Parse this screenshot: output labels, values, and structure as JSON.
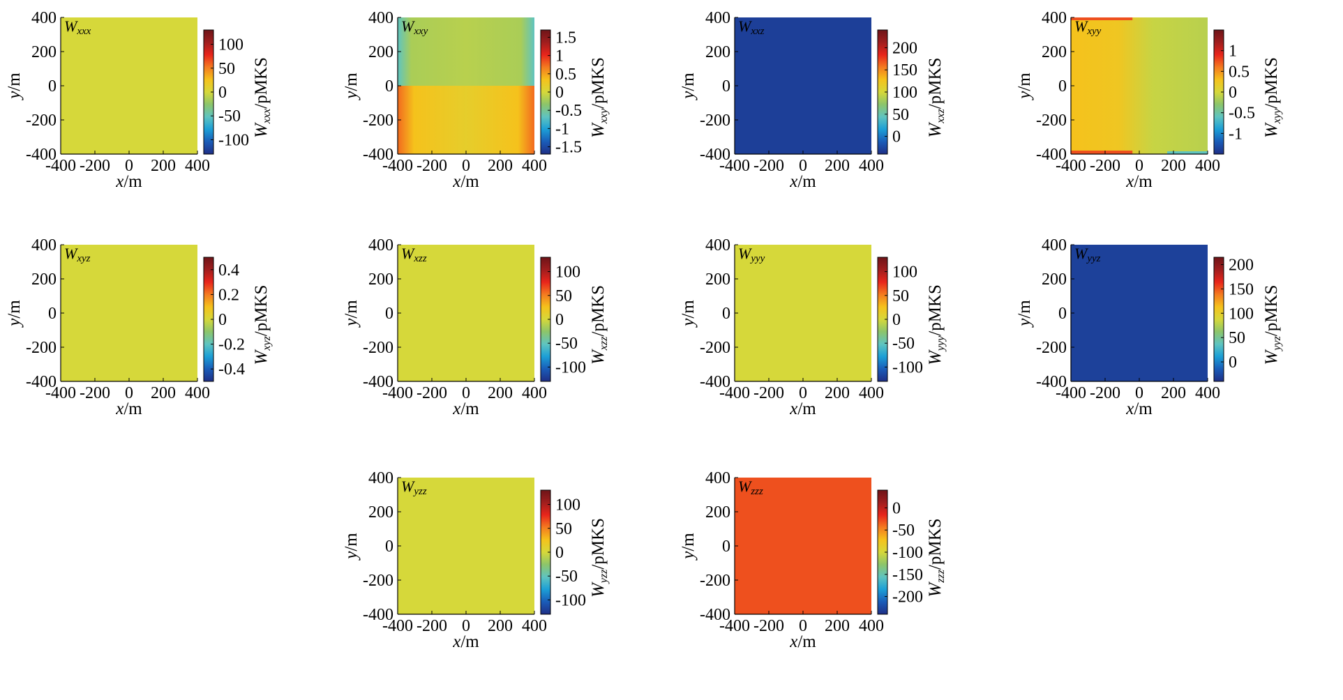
{
  "axes": {
    "x_label": {
      "var": "x",
      "unit": "/m"
    },
    "y_label": {
      "var": "y",
      "unit": "/m"
    },
    "ticks": [
      "-400",
      "-200",
      "0",
      "200",
      "400"
    ]
  },
  "colormap": [
    "#1f2f86",
    "#1a5cb8",
    "#1c9fd6",
    "#5fc4c0",
    "#8cc56b",
    "#d6d83a",
    "#f5c21c",
    "#f47b20",
    "#e8251b",
    "#a01e1e",
    "#6e1418"
  ],
  "chart_data": [
    {
      "type": "heatmap",
      "component": "xxx",
      "sub": "xxx",
      "unit": "/pMKS",
      "x_range": [
        -400,
        400
      ],
      "y_range": [
        -400,
        400
      ],
      "colorbar_range": [
        -130,
        130
      ],
      "colorbar_ticks": [
        "100",
        "50",
        "0",
        "-50",
        "-100"
      ],
      "field": "uniform",
      "field_value": 0
    },
    {
      "type": "heatmap",
      "component": "xxy",
      "sub": "xxy",
      "unit": "/pMKS",
      "x_range": [
        -400,
        400
      ],
      "y_range": [
        -400,
        400
      ],
      "colorbar_range": [
        -1.7,
        1.7
      ],
      "colorbar_ticks": [
        "1.5",
        "1",
        "0.5",
        "0",
        "-0.5",
        "-1",
        "-1.5"
      ],
      "field": "edge_lr",
      "field_value": 0
    },
    {
      "type": "heatmap",
      "component": "xxz",
      "sub": "xxz",
      "unit": "/pMKS",
      "x_range": [
        -400,
        400
      ],
      "y_range": [
        -400,
        400
      ],
      "colorbar_range": [
        -40,
        240
      ],
      "colorbar_ticks": [
        "200",
        "150",
        "100",
        "50",
        "0"
      ],
      "field": "uniform",
      "field_value": -30
    },
    {
      "type": "heatmap",
      "component": "xyy",
      "sub": "xyy",
      "unit": "/pMKS",
      "x_range": [
        -400,
        400
      ],
      "y_range": [
        -400,
        400
      ],
      "colorbar_range": [
        -1.5,
        1.5
      ],
      "colorbar_ticks": [
        "1",
        "0.5",
        "0",
        "-0.5",
        "-1"
      ],
      "field": "edge_tb",
      "field_value": 0
    },
    {
      "type": "heatmap",
      "component": "xyz",
      "sub": "xyz",
      "unit": "/pMKS",
      "x_range": [
        -400,
        400
      ],
      "y_range": [
        -400,
        400
      ],
      "colorbar_range": [
        -0.5,
        0.5
      ],
      "colorbar_ticks": [
        "0.4",
        "0.2",
        "0",
        "-0.2",
        "-0.4"
      ],
      "field": "uniform",
      "field_value": 0
    },
    {
      "type": "heatmap",
      "component": "xzz",
      "sub": "xzz",
      "unit": "/pMKS",
      "x_range": [
        -400,
        400
      ],
      "y_range": [
        -400,
        400
      ],
      "colorbar_range": [
        -130,
        130
      ],
      "colorbar_ticks": [
        "100",
        "50",
        "0",
        "-50",
        "-100"
      ],
      "field": "uniform",
      "field_value": 0
    },
    {
      "type": "heatmap",
      "component": "yyy",
      "sub": "yyy",
      "unit": "/pMKS",
      "x_range": [
        -400,
        400
      ],
      "y_range": [
        -400,
        400
      ],
      "colorbar_range": [
        -130,
        130
      ],
      "colorbar_ticks": [
        "100",
        "50",
        "0",
        "-50",
        "-100"
      ],
      "field": "uniform",
      "field_value": 0
    },
    {
      "type": "heatmap",
      "component": "yyz",
      "sub": "yyz",
      "unit": "/pMKS",
      "x_range": [
        -400,
        400
      ],
      "y_range": [
        -400,
        400
      ],
      "colorbar_range": [
        -40,
        215
      ],
      "colorbar_ticks": [
        "200",
        "150",
        "100",
        "50",
        "0"
      ],
      "field": "uniform",
      "field_value": -30
    },
    {
      "type": "heatmap",
      "component": "yzz",
      "sub": "yzz",
      "unit": "/pMKS",
      "x_range": [
        -400,
        400
      ],
      "y_range": [
        -400,
        400
      ],
      "colorbar_range": [
        -130,
        130
      ],
      "colorbar_ticks": [
        "100",
        "50",
        "0",
        "-50",
        "-100"
      ],
      "field": "uniform",
      "field_value": 0
    },
    {
      "type": "heatmap",
      "component": "zzz",
      "sub": "zzz",
      "unit": "/pMKS",
      "x_range": [
        -400,
        400
      ],
      "y_range": [
        -400,
        400
      ],
      "colorbar_range": [
        -240,
        40
      ],
      "colorbar_ticks": [
        "0",
        "-50",
        "-100",
        "-150",
        "-200"
      ],
      "field": "uniform",
      "field_value": -30
    }
  ]
}
